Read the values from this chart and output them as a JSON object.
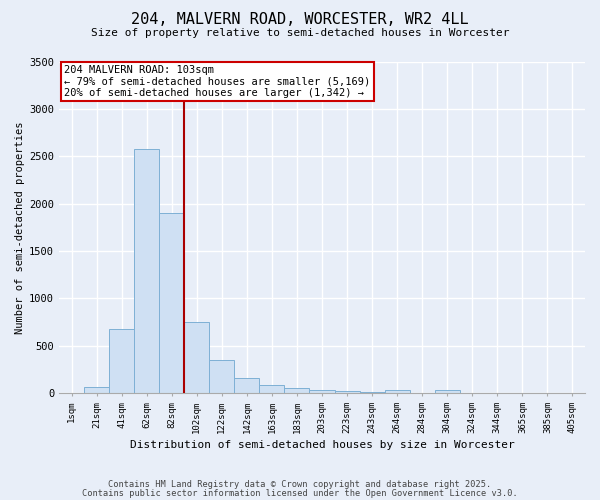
{
  "title1": "204, MALVERN ROAD, WORCESTER, WR2 4LL",
  "title2": "Size of property relative to semi-detached houses in Worcester",
  "xlabel": "Distribution of semi-detached houses by size in Worcester",
  "ylabel": "Number of semi-detached properties",
  "categories": [
    "1sqm",
    "21sqm",
    "41sqm",
    "62sqm",
    "82sqm",
    "102sqm",
    "122sqm",
    "142sqm",
    "163sqm",
    "183sqm",
    "203sqm",
    "223sqm",
    "243sqm",
    "264sqm",
    "284sqm",
    "304sqm",
    "324sqm",
    "344sqm",
    "365sqm",
    "385sqm",
    "405sqm"
  ],
  "values": [
    0,
    60,
    680,
    2580,
    1900,
    750,
    350,
    160,
    90,
    55,
    35,
    25,
    15,
    30,
    0,
    30,
    0,
    0,
    0,
    0,
    0
  ],
  "bar_color": "#cfe0f3",
  "bar_edge_color": "#7eb0d5",
  "property_line_x": 4.5,
  "property_line_color": "#aa0000",
  "annotation_text": "204 MALVERN ROAD: 103sqm\n← 79% of semi-detached houses are smaller (5,169)\n20% of semi-detached houses are larger (1,342) →",
  "annotation_box_color": "#ffffff",
  "annotation_box_edge": "#cc0000",
  "ylim": [
    0,
    3500
  ],
  "yticks": [
    0,
    500,
    1000,
    1500,
    2000,
    2500,
    3000,
    3500
  ],
  "footer1": "Contains HM Land Registry data © Crown copyright and database right 2025.",
  "footer2": "Contains public sector information licensed under the Open Government Licence v3.0.",
  "background_color": "#e8eef8",
  "plot_background": "#e8eef8",
  "grid_color": "#ffffff"
}
